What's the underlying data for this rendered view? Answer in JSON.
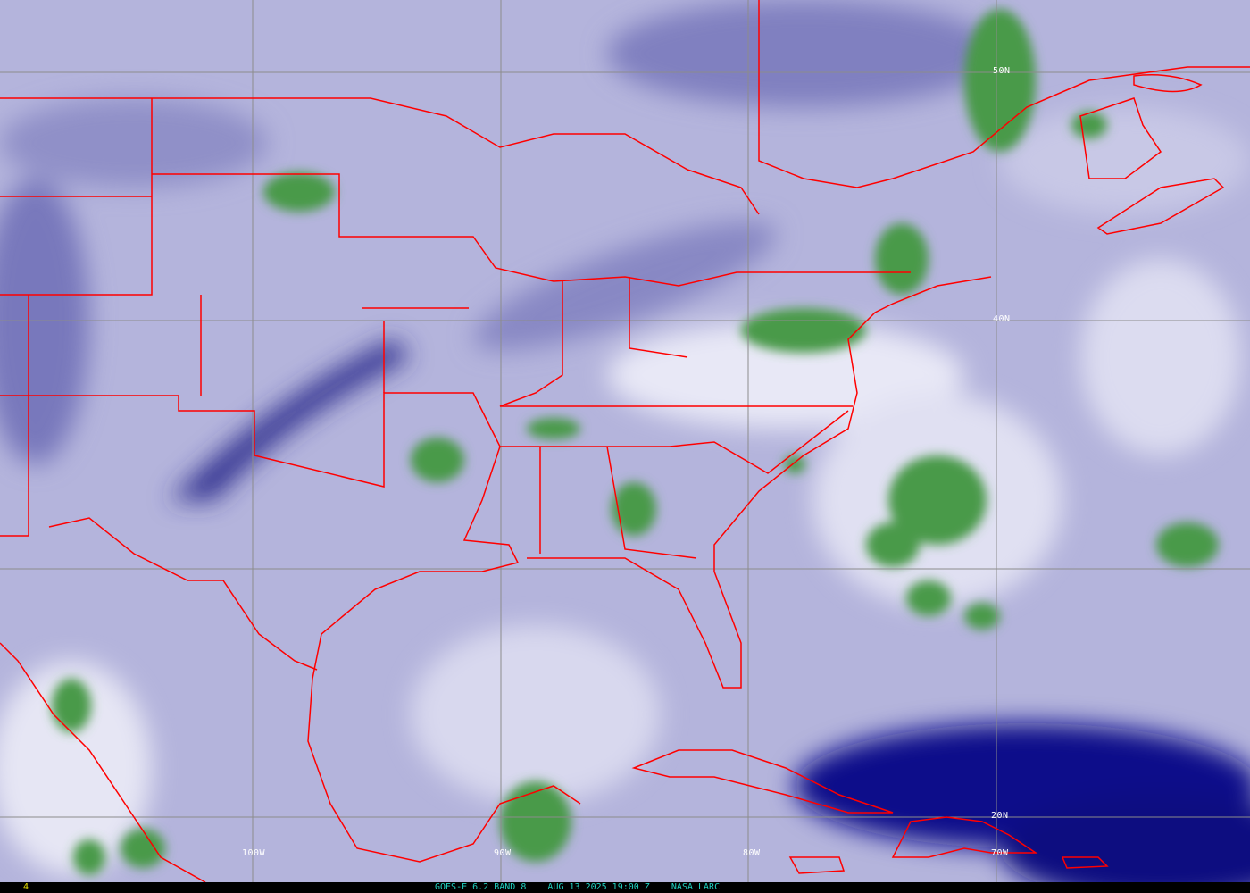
{
  "image": {
    "type": "satellite water vapor imagery with map overlay",
    "colors": {
      "dry": "#1a1a8c",
      "mid": "#b4b4dc",
      "moist": "#f0f0f8",
      "cloud_top": "#3c8c3c",
      "borders": "#ff0000",
      "grid": "#888888"
    }
  },
  "grid_labels": {
    "lat": [
      "50N",
      "40N",
      "20N"
    ],
    "lon": [
      "100W",
      "90W",
      "80W",
      "70W"
    ]
  },
  "footer": {
    "frame_number": "4",
    "caption": "GOES-E 6.2 BAND 8    AUG 13 2025 19:00 Z    NASA LARC"
  }
}
